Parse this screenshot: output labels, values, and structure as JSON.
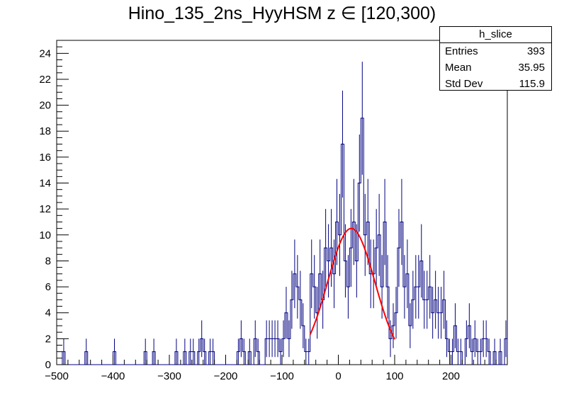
{
  "title": "Hino_135_2ns_HyyHSM z  ∈ [120,300)",
  "stats": {
    "name": "h_slice",
    "rows": [
      {
        "label": "Entries",
        "value": "393"
      },
      {
        "label": "Mean",
        "value": "35.95"
      },
      {
        "label": "Std Dev",
        "value": "115.9"
      }
    ]
  },
  "colors": {
    "histogram": "#000080",
    "fit": "#ff0000",
    "axis": "#000000"
  },
  "chart_data": {
    "type": "histogram",
    "xlim": [
      -500,
      300
    ],
    "ylim": [
      0,
      25
    ],
    "bin_width": 5,
    "xticks": [
      -500,
      -400,
      -300,
      -200,
      -100,
      0,
      100,
      200
    ],
    "xtick_labels": [
      "−500",
      "−400",
      "−300",
      "−200",
      "−100",
      "0",
      "100",
      "200"
    ],
    "yticks": [
      0,
      2,
      4,
      6,
      8,
      10,
      12,
      14,
      16,
      18,
      20,
      22,
      24
    ],
    "nonzero_bins": [
      [
        -490,
        1
      ],
      [
        -450,
        1
      ],
      [
        -400,
        1
      ],
      [
        -345,
        1
      ],
      [
        -330,
        1
      ],
      [
        -290,
        1
      ],
      [
        -275,
        1
      ],
      [
        -265,
        1
      ],
      [
        -260,
        1
      ],
      [
        -250,
        1
      ],
      [
        -245,
        2
      ],
      [
        -240,
        1
      ],
      [
        -230,
        1
      ],
      [
        -225,
        1
      ],
      [
        -180,
        1
      ],
      [
        -175,
        2
      ],
      [
        -170,
        1
      ],
      [
        -160,
        1
      ],
      [
        -150,
        2
      ],
      [
        -145,
        1
      ],
      [
        -130,
        2
      ],
      [
        -125,
        2
      ],
      [
        -120,
        2
      ],
      [
        -115,
        2
      ],
      [
        -110,
        2
      ],
      [
        -105,
        1
      ],
      [
        -100,
        2
      ],
      [
        -95,
        4
      ],
      [
        -90,
        2
      ],
      [
        -85,
        5
      ],
      [
        -80,
        7
      ],
      [
        -75,
        6
      ],
      [
        -70,
        5
      ],
      [
        -65,
        3
      ],
      [
        -60,
        1
      ],
      [
        -55,
        1
      ],
      [
        -50,
        7
      ],
      [
        -45,
        6
      ],
      [
        -40,
        4
      ],
      [
        -35,
        7
      ],
      [
        -30,
        5
      ],
      [
        -25,
        9
      ],
      [
        -20,
        8
      ],
      [
        -15,
        9
      ],
      [
        -10,
        7
      ],
      [
        -5,
        11
      ],
      [
        0,
        10
      ],
      [
        5,
        17
      ],
      [
        10,
        8
      ],
      [
        15,
        6
      ],
      [
        20,
        9
      ],
      [
        25,
        11
      ],
      [
        30,
        8
      ],
      [
        35,
        14
      ],
      [
        40,
        19
      ],
      [
        45,
        10
      ],
      [
        50,
        11
      ],
      [
        55,
        7
      ],
      [
        60,
        7
      ],
      [
        65,
        9
      ],
      [
        70,
        10
      ],
      [
        75,
        6
      ],
      [
        80,
        11
      ],
      [
        85,
        6
      ],
      [
        90,
        2
      ],
      [
        95,
        3
      ],
      [
        100,
        4
      ],
      [
        105,
        9
      ],
      [
        110,
        11
      ],
      [
        115,
        6
      ],
      [
        120,
        7
      ],
      [
        125,
        3
      ],
      [
        130,
        5
      ],
      [
        135,
        6
      ],
      [
        140,
        6
      ],
      [
        145,
        8
      ],
      [
        150,
        5
      ],
      [
        155,
        5
      ],
      [
        160,
        6
      ],
      [
        165,
        4
      ],
      [
        170,
        5
      ],
      [
        175,
        4
      ],
      [
        180,
        4
      ],
      [
        185,
        5
      ],
      [
        190,
        2
      ],
      [
        195,
        1
      ],
      [
        200,
        1
      ],
      [
        205,
        3
      ],
      [
        210,
        1
      ],
      [
        215,
        1
      ],
      [
        225,
        2
      ],
      [
        230,
        3
      ],
      [
        235,
        1
      ],
      [
        240,
        2
      ],
      [
        245,
        1
      ],
      [
        250,
        1
      ],
      [
        255,
        2
      ],
      [
        260,
        2
      ],
      [
        265,
        1
      ],
      [
        275,
        1
      ],
      [
        285,
        1
      ],
      [
        295,
        2
      ]
    ],
    "fit": {
      "type": "gaussian",
      "amplitude": 10.5,
      "mean": 23,
      "sigma": 42,
      "xrange": [
        -50,
        100
      ]
    }
  }
}
